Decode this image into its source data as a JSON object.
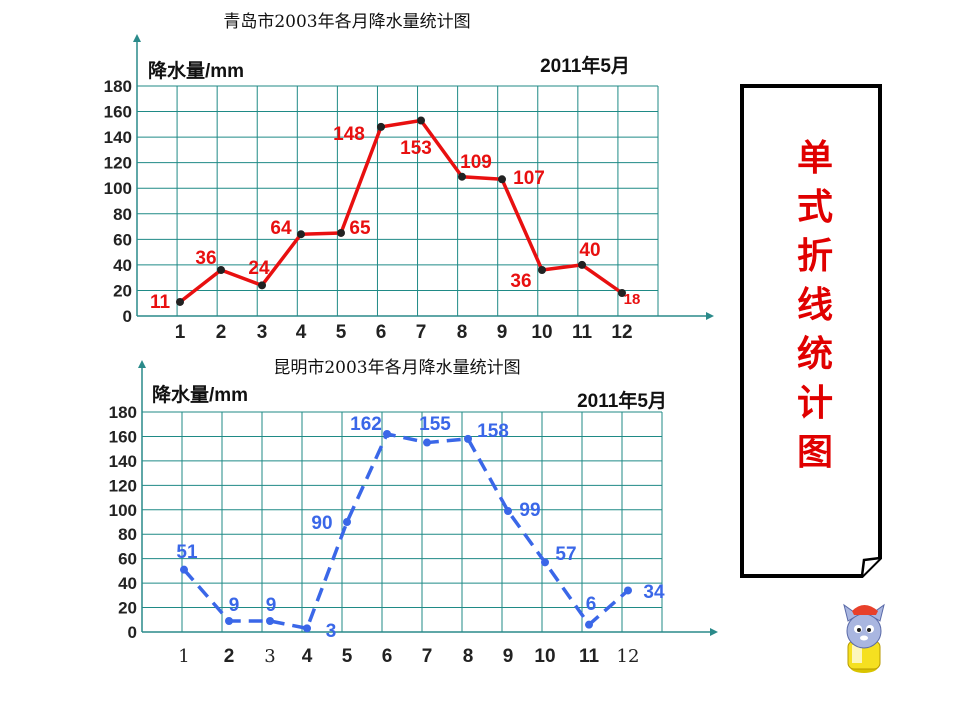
{
  "chart_data": [
    {
      "type": "line",
      "title": "青岛市2003年各月降水量统计图",
      "ylabel": "降水量/mm",
      "date": "2011年5月",
      "categories": [
        "1",
        "2",
        "3",
        "4",
        "5",
        "6",
        "7",
        "8",
        "9",
        "10",
        "11",
        "12"
      ],
      "values": [
        11,
        36,
        24,
        64,
        65,
        148,
        153,
        109,
        107,
        36,
        40,
        18
      ],
      "ylim": [
        0,
        180
      ],
      "yticks": [
        "0",
        "20",
        "40",
        "60",
        "80",
        "100",
        "120",
        "140",
        "160",
        "180"
      ],
      "line_style": "solid",
      "color": "#e81010"
    },
    {
      "type": "line",
      "title": "昆明市2003年各月降水量统计图",
      "ylabel": "降水量/mm",
      "date": "2011年5月",
      "categories": [
        "1",
        "2",
        "3",
        "4",
        "5",
        "6",
        "7",
        "8",
        "9",
        "10",
        "11",
        "12"
      ],
      "values": [
        51,
        9,
        9,
        3,
        90,
        162,
        155,
        158,
        99,
        57,
        6,
        34
      ],
      "ylim": [
        0,
        180
      ],
      "yticks": [
        "0",
        "20",
        "40",
        "60",
        "80",
        "100",
        "120",
        "140",
        "160",
        "180"
      ],
      "line_style": "dashed",
      "color": "#3a67e8"
    }
  ],
  "side_card": {
    "chars": [
      "单",
      "式",
      "折",
      "线",
      "统",
      "计",
      "图"
    ]
  },
  "colors": {
    "grid": "#1f8a86",
    "axis": "#2a8a8a",
    "card_text": "#e00000"
  }
}
